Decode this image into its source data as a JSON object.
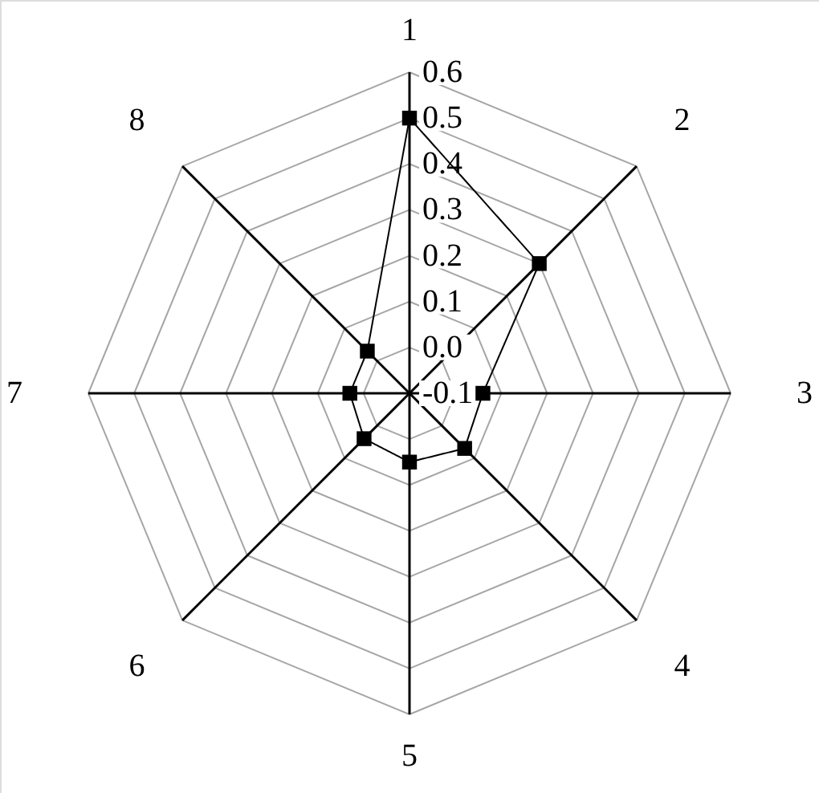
{
  "chart_data": {
    "type": "radar",
    "categories": [
      "1",
      "2",
      "3",
      "4",
      "5",
      "6",
      "7",
      "8"
    ],
    "series": [
      {
        "color": "#000000",
        "values": [
          0.5,
          0.3,
          0.06,
          0.07,
          0.05,
          0.04,
          0.03,
          0.03
        ]
      }
    ],
    "ylim": [
      -0.1,
      0.6
    ],
    "yticks": [
      -0.1,
      {
        "value": 0,
        "label": "0.0"
      },
      0.1,
      0.2,
      0.3,
      0.4,
      0.5,
      0.6
    ],
    "grid": true,
    "marker": "square",
    "line_style": "solid"
  }
}
